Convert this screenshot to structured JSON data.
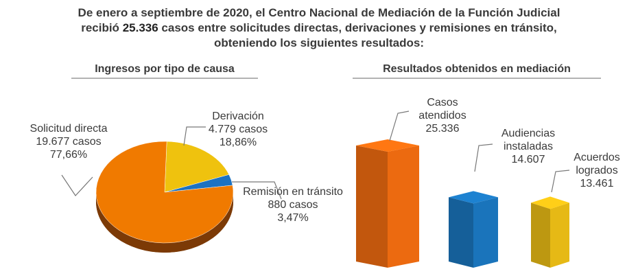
{
  "intro": {
    "before": "De enero a septiembre de 2020, el Centro Nacional de Mediación de la Función Judicial recibió",
    "bold": "25.336",
    "after": "casos entre solicitudes directas, derivaciones y remisiones en tránsito, obteniendo los siguientes resultados:"
  },
  "chart_data": [
    {
      "type": "pie",
      "title": "Ingresos por tipo de causa",
      "categories": [
        "Solicitud directa",
        "Derivación",
        "Remisión en tránsito"
      ],
      "values": [
        77.66,
        18.86,
        3.47
      ],
      "value_labels": [
        "77,66%",
        "18,86%",
        "3,47%"
      ],
      "cases": [
        19677,
        4779,
        880
      ],
      "case_labels": [
        "19.677 casos",
        "4.779 casos",
        "880 casos"
      ],
      "colors": [
        "#f07a00",
        "#efc20e",
        "#1c72c2"
      ]
    },
    {
      "type": "bar3d",
      "title": "Resultados obtenidos en mediación",
      "categories": [
        "Casos atendidos",
        "Audiencias instaladas",
        "Acuerdos logrados"
      ],
      "values": [
        25336,
        14607,
        13461
      ],
      "value_labels": [
        "25.336",
        "14.607",
        "13.461"
      ],
      "colors": [
        "#ec6a10",
        "#1a74bb",
        "#e6b915"
      ]
    }
  ]
}
